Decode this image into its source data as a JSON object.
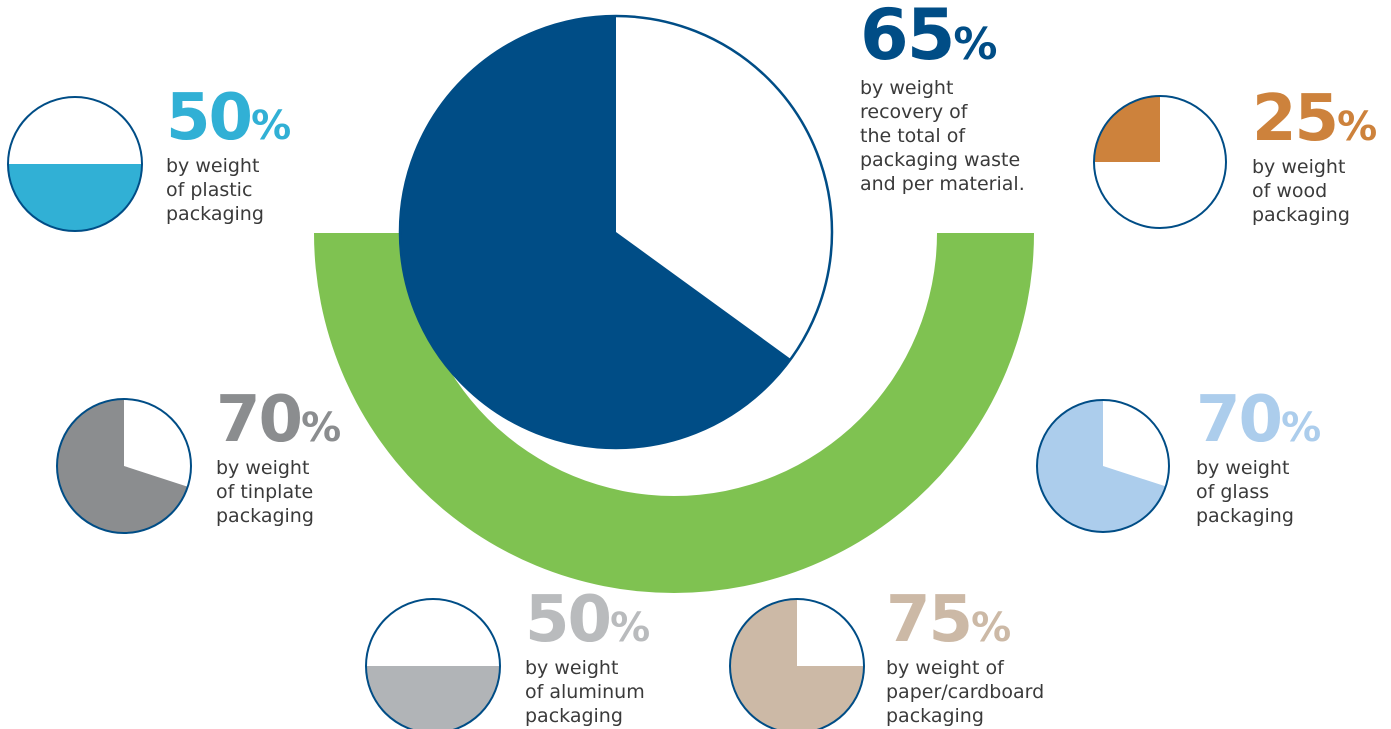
{
  "colors": {
    "outline": "#004d86",
    "arc": "#7fc251",
    "background": "#ffffff"
  },
  "chart_data": [
    {
      "type": "pie",
      "value_percent": 65,
      "value_label": "65",
      "unit": "%",
      "text": "by weight recovery of the total of packaging waste and per material.",
      "lines": [
        "by weight",
        "recovery of",
        "the total of",
        "packaging waste",
        "and per material."
      ],
      "fill_color": "#004d86",
      "label_color": "#004d86"
    },
    {
      "type": "pie",
      "value_percent": 50,
      "value_label": "50",
      "unit": "%",
      "text": "by weight of plastic packaging",
      "lines": [
        "by weight",
        "of plastic",
        "packaging"
      ],
      "fill_style": "level",
      "fill_color": "#31b0d5",
      "label_color": "#31b0d5"
    },
    {
      "type": "pie",
      "value_percent": 25,
      "value_label": "25",
      "unit": "%",
      "text": "by weight of wood packaging",
      "lines": [
        "by weight",
        "of wood",
        "packaging"
      ],
      "fill_style": "slice",
      "fill_color": "#cd823c",
      "label_color": "#cd823c"
    },
    {
      "type": "pie",
      "value_percent": 70,
      "value_label": "70",
      "unit": "%",
      "text": "by weight of tinplate packaging",
      "lines": [
        "by weight",
        "of tinplate",
        "packaging"
      ],
      "fill_style": "slice",
      "fill_color": "#8b8d8f",
      "label_color": "#8b8d8f"
    },
    {
      "type": "pie",
      "value_percent": 70,
      "value_label": "70",
      "unit": "%",
      "text": "by weight of glass packaging",
      "lines": [
        "by weight",
        "of glass",
        "packaging"
      ],
      "fill_style": "slice",
      "fill_color": "#accdec",
      "label_color": "#accdec"
    },
    {
      "type": "pie",
      "value_percent": 50,
      "value_label": "50",
      "unit": "%",
      "text": "by weight of aluminum packaging",
      "lines": [
        "by weight",
        "of aluminum",
        "packaging"
      ],
      "fill_style": "level",
      "fill_color": "#b1b4b7",
      "label_color": "#b9bbbd"
    },
    {
      "type": "pie",
      "value_percent": 75,
      "value_label": "75",
      "unit": "%",
      "text": "by weight of paper/cardboard packaging",
      "lines": [
        "by weight of",
        "paper/cardboard",
        "packaging"
      ],
      "fill_style": "slice",
      "fill_color": "#ccb9a6",
      "label_color": "#ccb9a6"
    }
  ]
}
